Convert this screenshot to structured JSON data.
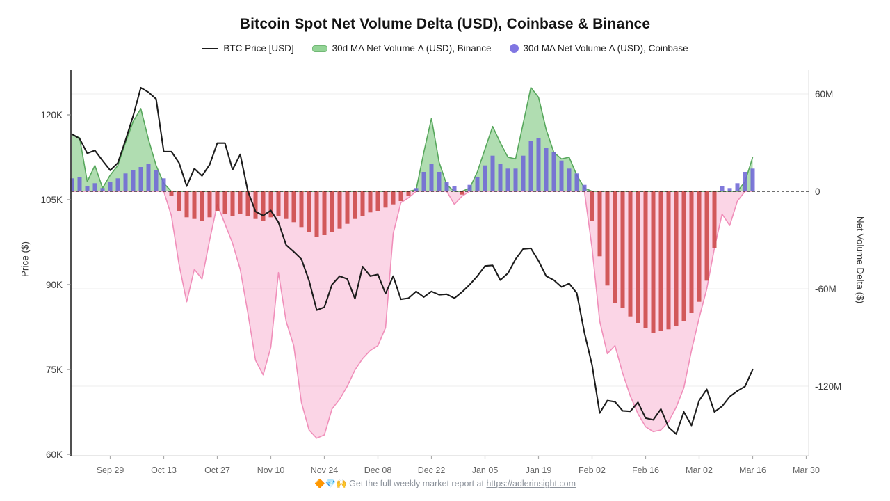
{
  "title": "Bitcoin Spot Net Volume Delta (USD), Coinbase & Binance",
  "legend": {
    "items": [
      {
        "label": "BTC Price [USD]",
        "swatch": "line-swatch",
        "color": "#1c1c1c"
      },
      {
        "label": "30d MA Net Volume Δ (USD), Binance",
        "swatch": "band-swatch",
        "color": "#93d496"
      },
      {
        "label": "30d MA Net Volume Δ (USD), Coinbase",
        "swatch": "dot-swatch",
        "color": "#8076e2"
      }
    ]
  },
  "axes": {
    "left": {
      "title": "Price ($)",
      "ticks": [
        {
          "label": "120K",
          "value": 120
        },
        {
          "label": "105K",
          "value": 105
        },
        {
          "label": "90K",
          "value": 90
        },
        {
          "label": "75K",
          "value": 75
        },
        {
          "label": "60K",
          "value": 60
        }
      ]
    },
    "right": {
      "title": "Net Volume Delta ($)",
      "ticks": [
        {
          "label": "60M",
          "value": 60
        },
        {
          "label": "0",
          "value": 0
        },
        {
          "label": "-60M",
          "value": -60
        },
        {
          "label": "-120M",
          "value": -120
        }
      ]
    },
    "x": {
      "ticks": [
        {
          "label": "Sep 29",
          "day": 10
        },
        {
          "label": "Oct 13",
          "day": 24
        },
        {
          "label": "Oct 27",
          "day": 38
        },
        {
          "label": "Nov 10",
          "day": 52
        },
        {
          "label": "Nov 24",
          "day": 66
        },
        {
          "label": "Dec 08",
          "day": 80
        },
        {
          "label": "Dec 22",
          "day": 94
        },
        {
          "label": "Jan 05",
          "day": 108
        },
        {
          "label": "Jan 19",
          "day": 122
        },
        {
          "label": "Feb 02",
          "day": 136
        },
        {
          "label": "Feb 16",
          "day": 150
        },
        {
          "label": "Mar 02",
          "day": 164
        },
        {
          "label": "Mar 16",
          "day": 178
        },
        {
          "label": "Mar 30",
          "day": 192
        }
      ]
    }
  },
  "footer": {
    "emojis": "🔶💎🙌",
    "text": "Get the full weekly market report at",
    "link": "https://adlerinsight.com"
  },
  "chart_data": {
    "type": "mixed",
    "title": "Bitcoin Spot Net Volume Delta (USD), Coinbase & Binance",
    "left_axis": {
      "label": "Price ($)",
      "unit": "K USD",
      "range_at_plot_edges": [
        128,
        60
      ],
      "tick_step": 15
    },
    "right_axis": {
      "label": "Net Volume Delta ($)",
      "unit": "M USD",
      "range_at_plot_edges": [
        75,
        -163
      ],
      "tick_step": 60
    },
    "grid": "horizontal-right-axis-ticks-only",
    "zero_line": "dashed-black-at-0",
    "legend_position": "top-center",
    "sample_interval_days": 2,
    "x_dates": [
      "Sep 19",
      "Sep 21",
      "Sep 23",
      "Sep 25",
      "Sep 27",
      "Sep 29",
      "Oct 01",
      "Oct 03",
      "Oct 05",
      "Oct 07",
      "Oct 09",
      "Oct 11",
      "Oct 13",
      "Oct 15",
      "Oct 17",
      "Oct 19",
      "Oct 21",
      "Oct 23",
      "Oct 25",
      "Oct 27",
      "Oct 29",
      "Oct 31",
      "Nov 02",
      "Nov 04",
      "Nov 06",
      "Nov 08",
      "Nov 10",
      "Nov 12",
      "Nov 14",
      "Nov 16",
      "Nov 18",
      "Nov 20",
      "Nov 22",
      "Nov 24",
      "Nov 26",
      "Nov 28",
      "Nov 30",
      "Dec 02",
      "Dec 04",
      "Dec 06",
      "Dec 08",
      "Dec 10",
      "Dec 12",
      "Dec 14",
      "Dec 16",
      "Dec 18",
      "Dec 20",
      "Dec 22",
      "Dec 24",
      "Dec 26",
      "Dec 28",
      "Dec 30",
      "Jan 01",
      "Jan 03",
      "Jan 05",
      "Jan 07",
      "Jan 09",
      "Jan 11",
      "Jan 13",
      "Jan 15",
      "Jan 17",
      "Jan 19",
      "Jan 21",
      "Jan 23",
      "Jan 25",
      "Jan 27",
      "Jan 29",
      "Jan 31",
      "Feb 02",
      "Feb 04",
      "Feb 06",
      "Feb 08",
      "Feb 10",
      "Feb 12",
      "Feb 14",
      "Feb 16",
      "Feb 18",
      "Feb 20",
      "Feb 22",
      "Feb 24",
      "Feb 26",
      "Feb 28",
      "Mar 02",
      "Mar 04",
      "Mar 06",
      "Mar 08",
      "Mar 10",
      "Mar 12",
      "Mar 14",
      "Mar 16"
    ],
    "series": [
      {
        "name": "BTC Price [USD]",
        "type": "line",
        "axis": "left",
        "color": "#1c1c1c",
        "values_k_usd": [
          116.6,
          115.8,
          113.2,
          113.7,
          111.9,
          110.2,
          111.5,
          115.5,
          119.8,
          124.8,
          124.0,
          122.8,
          113.5,
          113.5,
          111.5,
          107.4,
          110.5,
          109.2,
          111.2,
          115.0,
          115.0,
          110.3,
          113.0,
          106.5,
          102.9,
          102.2,
          103.1,
          101.0,
          97.0,
          95.8,
          94.5,
          90.7,
          85.5,
          86.0,
          90.0,
          91.5,
          91.0,
          87.5,
          93.2,
          91.5,
          91.8,
          88.4,
          91.5,
          87.4,
          87.6,
          88.8,
          87.8,
          88.8,
          88.2,
          88.3,
          87.6,
          88.7,
          90.0,
          91.5,
          93.3,
          93.4,
          90.8,
          92.0,
          94.5,
          96.3,
          96.4,
          94.2,
          91.5,
          90.8,
          89.6,
          90.2,
          88.5,
          81.5,
          75.8,
          67.3,
          69.5,
          69.3,
          67.7,
          67.6,
          69.2,
          66.4,
          66.1,
          68.0,
          64.8,
          63.6,
          67.5,
          65.1,
          69.5,
          71.5,
          67.5,
          68.5,
          70.2,
          71.2,
          72.0,
          75.0
        ]
      },
      {
        "name": "30d MA Net Volume Δ (USD), Binance",
        "type": "area",
        "axis": "right",
        "color_positive_fill": "#7cc77d",
        "color_negative_fill": "#f6a2c7",
        "values_m_usd": [
          35,
          33,
          6,
          16,
          2,
          10,
          16,
          30,
          43,
          51,
          32,
          16,
          5,
          -15,
          -45,
          -68,
          -48,
          -54,
          -30,
          -8,
          -20,
          -32,
          -48,
          -75,
          -104,
          -113,
          -96,
          -50,
          -80,
          -95,
          -130,
          -147,
          -152,
          -150,
          -134,
          -128,
          -120,
          -110,
          -103,
          -98,
          -95,
          -84,
          -26,
          -7,
          -4,
          1,
          24,
          45,
          18,
          4,
          -8,
          -3,
          2,
          12,
          26,
          40,
          30,
          21,
          20,
          42,
          64,
          58,
          38,
          24,
          20,
          21,
          10,
          2,
          -35,
          -80,
          -100,
          -95,
          -112,
          -126,
          -137,
          -145,
          -148,
          -147,
          -142,
          -133,
          -121,
          -98,
          -78,
          -60,
          -35,
          -14,
          -21,
          -6,
          6,
          21
        ]
      },
      {
        "name": "30d MA Net Volume Δ (USD), Coinbase",
        "type": "bar",
        "axis": "right",
        "color_positive": "#6e66d6",
        "color_negative": "#cc4747",
        "values_m_usd": [
          8,
          9,
          3,
          5,
          2,
          6,
          8,
          11,
          13,
          15,
          17,
          13,
          8,
          -3,
          -12,
          -16,
          -17,
          -18,
          -16,
          -12,
          -14,
          -15,
          -14,
          -15,
          -17,
          -18,
          -16,
          -15,
          -17,
          -19,
          -22,
          -25,
          -28,
          -27,
          -25,
          -23,
          -20,
          -17,
          -15,
          -13,
          -12,
          -10,
          -8,
          -6,
          -3,
          2,
          12,
          17,
          12,
          6,
          3,
          -2,
          4,
          9,
          16,
          22,
          17,
          14,
          14,
          22,
          31,
          33,
          27,
          24,
          19,
          14,
          11,
          4,
          -18,
          -40,
          -58,
          -69,
          -72,
          -77,
          -81,
          -84,
          -87,
          -86,
          -85,
          -83,
          -80,
          -75,
          -68,
          -55,
          -35,
          3,
          2,
          5,
          12,
          14
        ]
      }
    ]
  },
  "colors": {
    "price_line": "#1c1c1c",
    "binance_fill_pos": "#7cc77d",
    "binance_stroke_pos": "#57a75c",
    "binance_fill_neg": "#f6a2c7",
    "binance_stroke_neg": "#f08fba",
    "coinbase_pos": "#6e66d6",
    "coinbase_neg": "#cc4747",
    "grid": "#ececec",
    "axis_line": "#3c3c3c",
    "tick_label": "#3c3c3c",
    "x_label": "#666666"
  }
}
